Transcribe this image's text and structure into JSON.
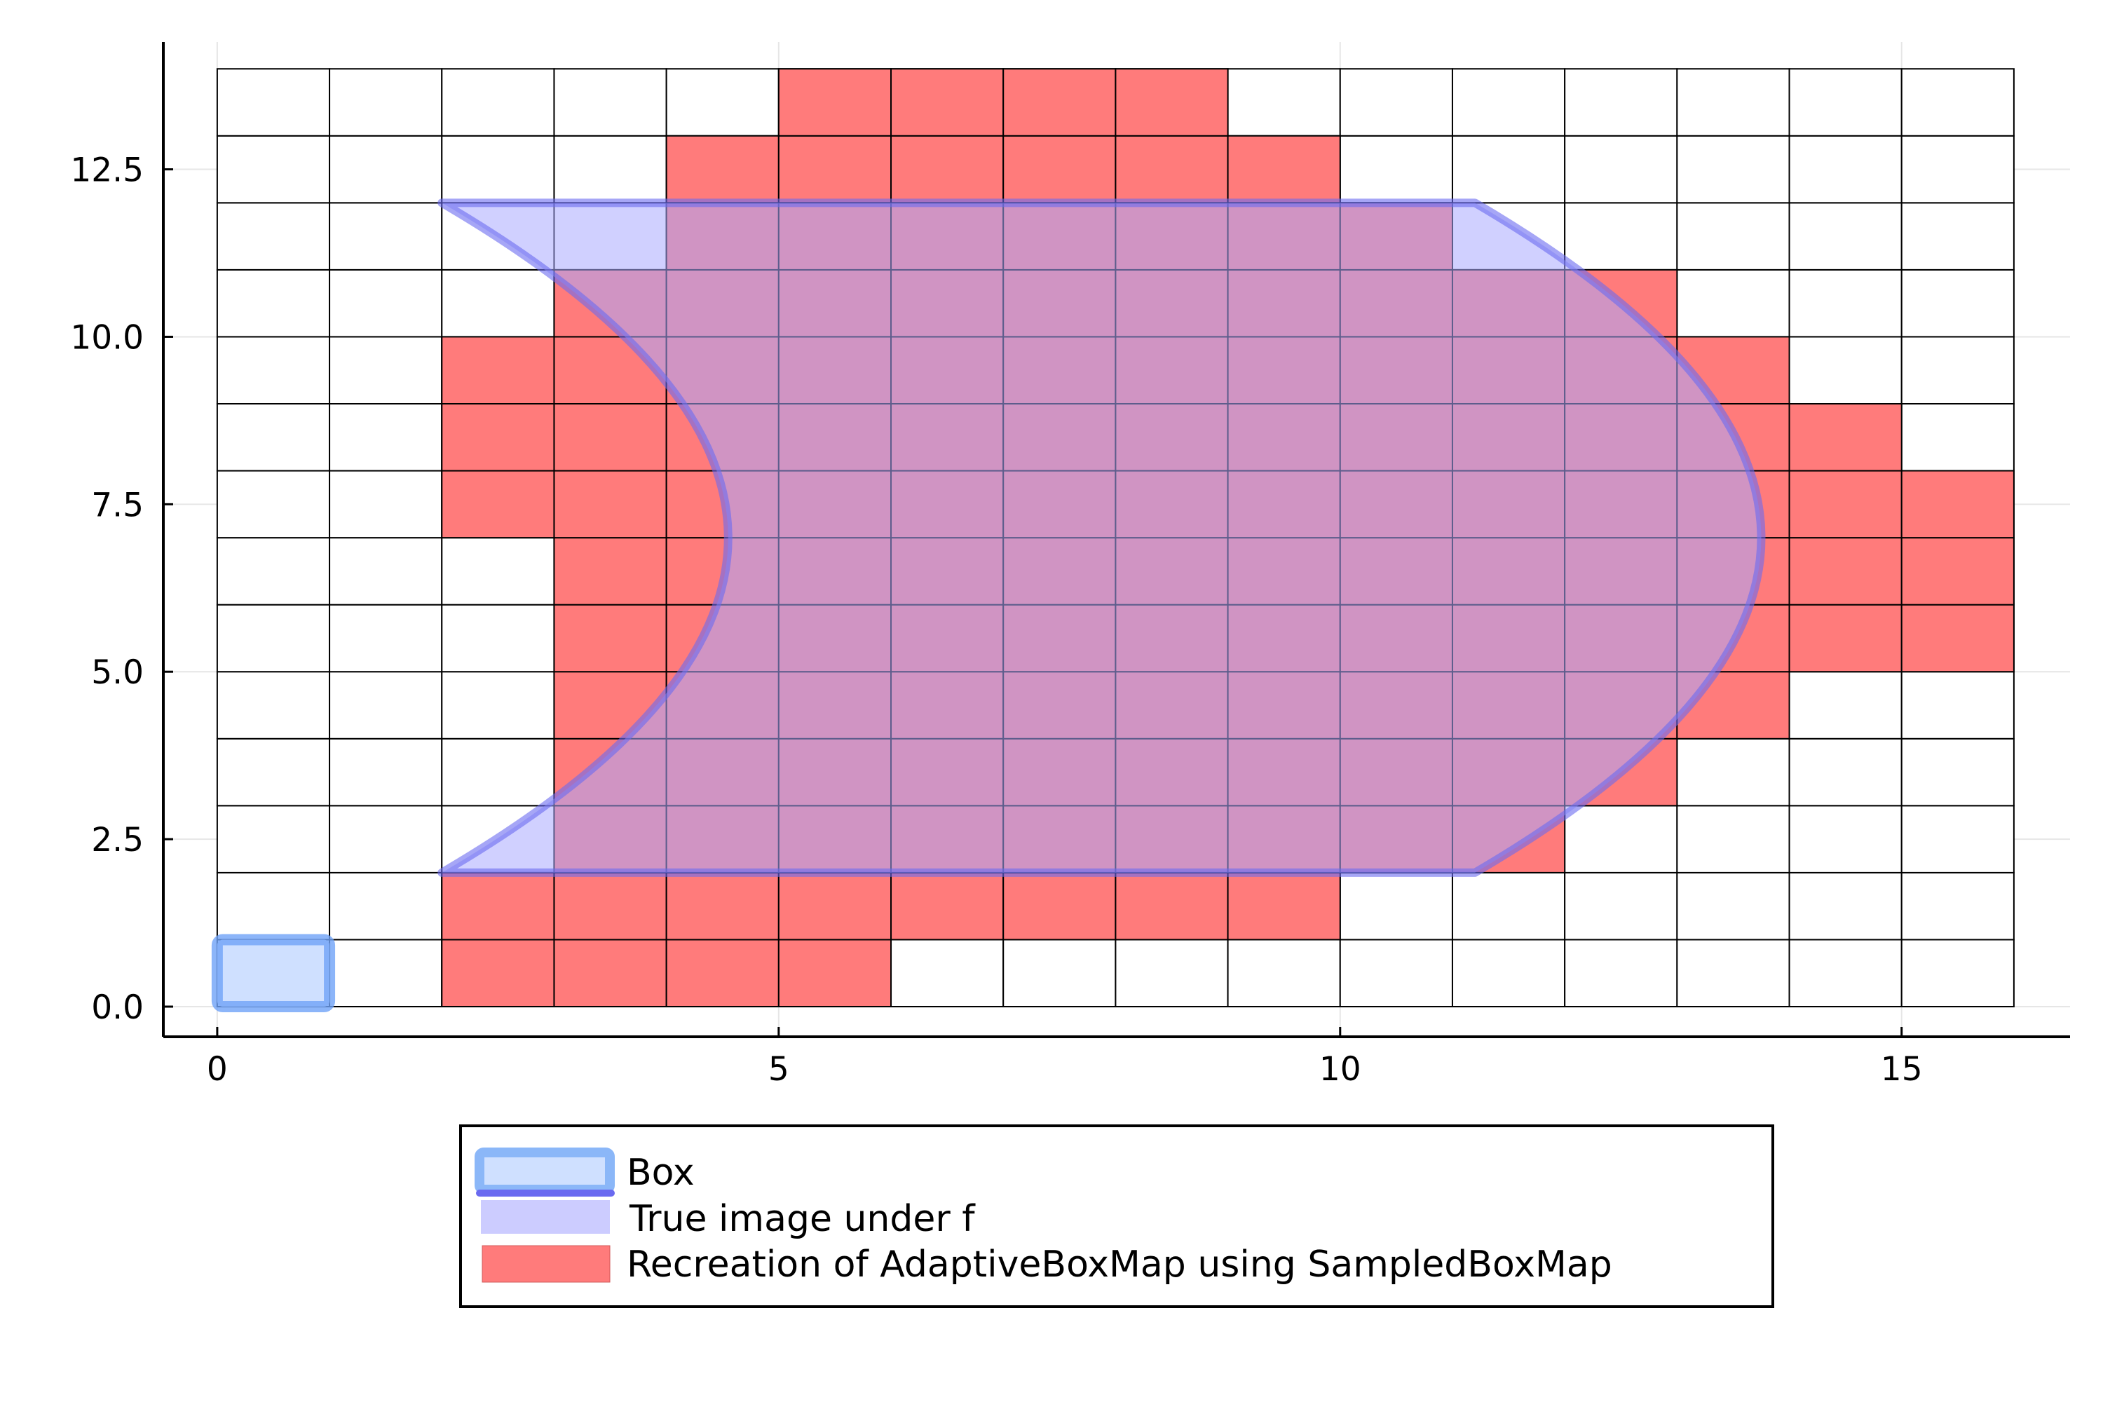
{
  "chart_data": {
    "type": "heatmap",
    "title": "",
    "xlabel": "",
    "ylabel": "",
    "xlim": [
      -0.48,
      16.5
    ],
    "ylim": [
      -0.45,
      14.4
    ],
    "xticks": [
      0,
      5,
      10,
      15
    ],
    "xtick_labels": [
      "0",
      "5",
      "10",
      "15"
    ],
    "yticks": [
      0.0,
      2.5,
      5.0,
      7.5,
      10.0,
      12.5
    ],
    "ytick_labels": [
      "0.0",
      "2.5",
      "5.0",
      "7.5",
      "10.0",
      "12.5"
    ],
    "grid": true,
    "legend_position": "bottom (outside)",
    "grid_cells": {
      "x_range": [
        0,
        16
      ],
      "y_range": [
        0,
        14
      ],
      "cell_width": 1,
      "cell_height": 1
    },
    "series": [
      {
        "name": "Box",
        "kind": "rectangle",
        "x": [
          0,
          1
        ],
        "y": [
          0,
          1
        ],
        "fill_color": "#cfe0ff",
        "stroke_color": "#6fa3f7"
      },
      {
        "name": "True image under f",
        "kind": "region",
        "corners": [
          [
            2,
            2
          ],
          [
            11.2,
            2
          ],
          [
            11.2,
            12
          ],
          [
            2,
            12
          ]
        ],
        "inner_bulge_x_at_y7": 4.55,
        "outer_bulge_x_at_y7": 13.75,
        "fill_color": "#aaaaff",
        "stroke_color": "#6a6af0"
      },
      {
        "name": "Recreation of AdaptiveBoxMap using SampledBoxMap",
        "kind": "boxes",
        "fill_color": "#ff7b7b",
        "row_intervals": [
          {
            "y": 0,
            "x_start": 2,
            "x_end": 6
          },
          {
            "y": 1,
            "x_start": 2,
            "x_end": 10
          },
          {
            "y": 2,
            "x_start": 3,
            "x_end": 12
          },
          {
            "y": 3,
            "x_start": 3,
            "x_end": 13
          },
          {
            "y": 4,
            "x_start": 3,
            "x_end": 14
          },
          {
            "y": 5,
            "x_start": 3,
            "x_end": 16
          },
          {
            "y": 6,
            "x_start": 3,
            "x_end": 16
          },
          {
            "y": 7,
            "x_start": 2,
            "x_end": 16
          },
          {
            "y": 8,
            "x_start": 2,
            "x_end": 15
          },
          {
            "y": 9,
            "x_start": 2,
            "x_end": 14
          },
          {
            "y": 10,
            "x_start": 3,
            "x_end": 13
          },
          {
            "y": 11,
            "x_start": 4,
            "x_end": 11
          },
          {
            "y": 12,
            "x_start": 4,
            "x_end": 10
          },
          {
            "y": 13,
            "x_start": 5,
            "x_end": 9
          }
        ]
      }
    ]
  }
}
